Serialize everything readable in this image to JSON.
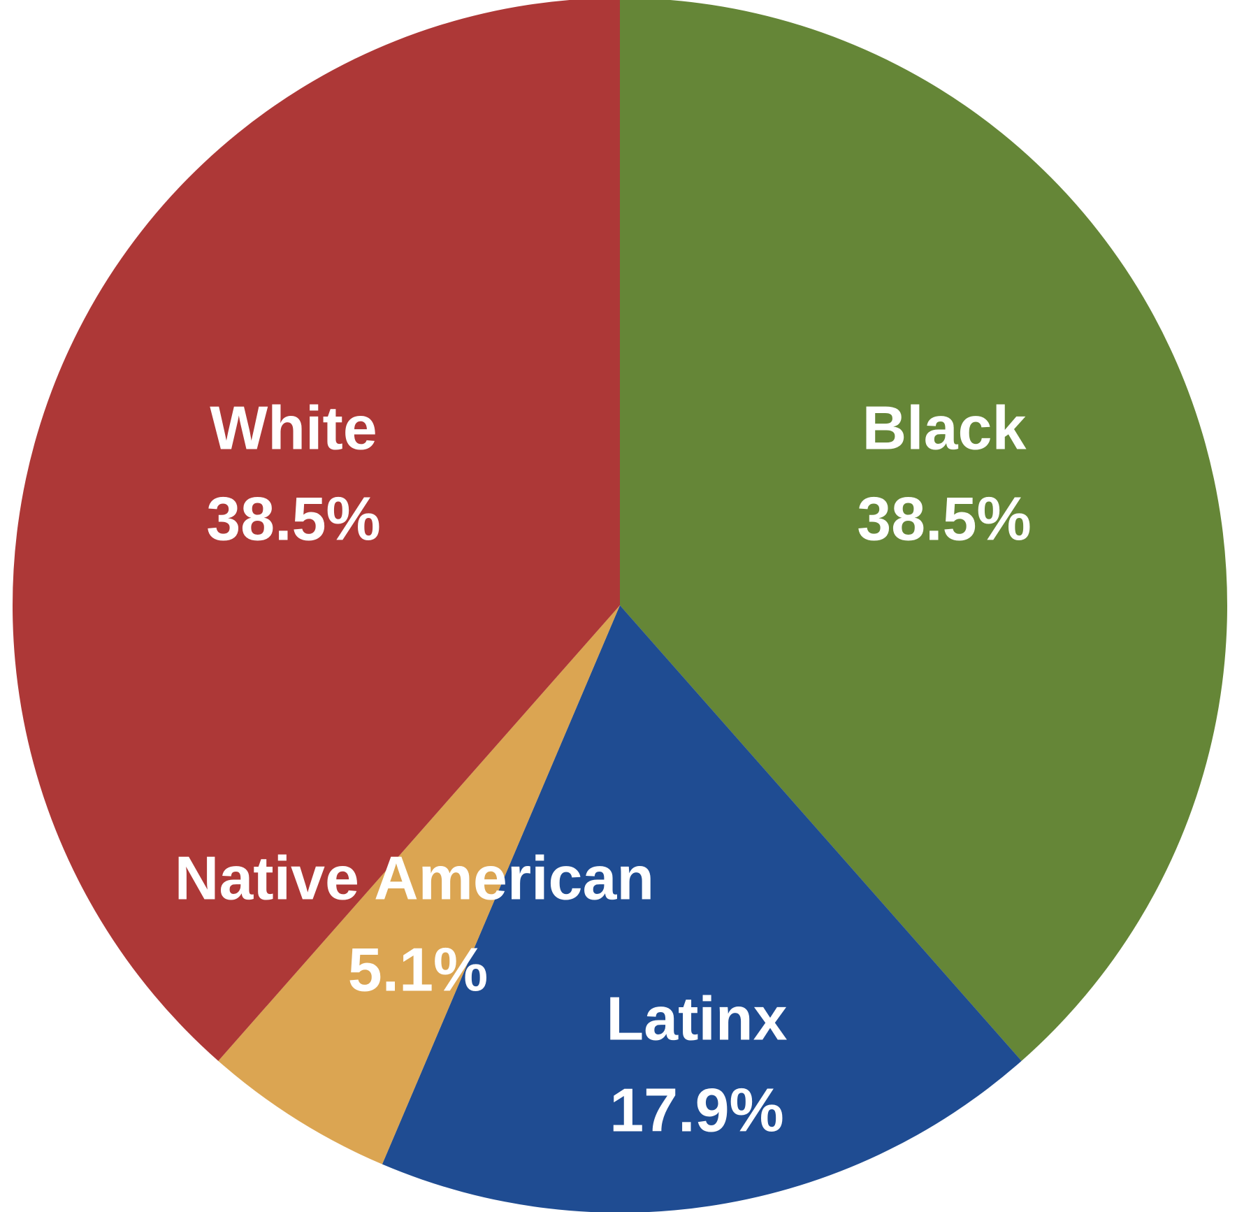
{
  "chart_data": {
    "type": "pie",
    "start": "top",
    "direction": "clockwise",
    "slices": [
      {
        "label": "Black",
        "value": 38.5,
        "value_label": "38.5%",
        "color": "#658637"
      },
      {
        "label": "Latinx",
        "value": 17.9,
        "value_label": "17.9%",
        "color": "#1F4C92"
      },
      {
        "label": "Native American",
        "value": 5.1,
        "value_label": "5.1%",
        "color": "#DBA552"
      },
      {
        "label": "White",
        "value": 38.5,
        "value_label": "38.5%",
        "color": "#AD3837"
      }
    ]
  }
}
